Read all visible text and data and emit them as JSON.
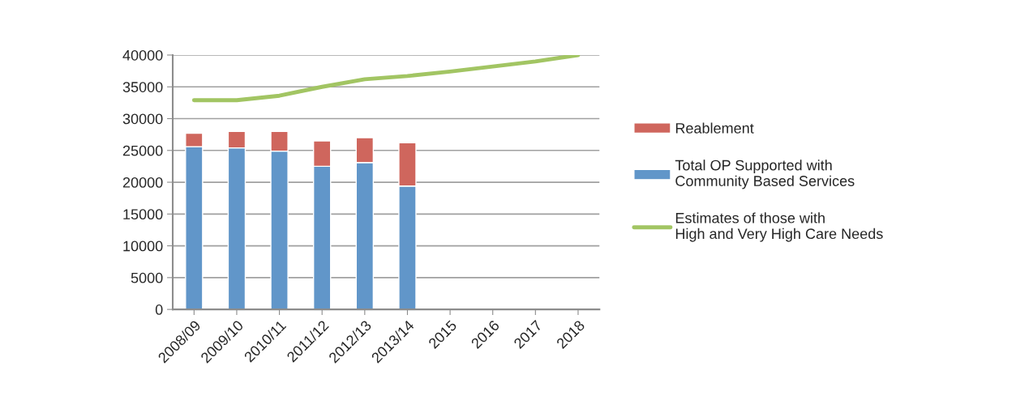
{
  "chart_data": {
    "type": "bar",
    "stacked": true,
    "categories": [
      "2008/09",
      "2009/10",
      "2010/11",
      "2011/12",
      "2012/13",
      "2013/14",
      "2015",
      "2016",
      "2017",
      "2018"
    ],
    "series": [
      {
        "name": "Total OP Supported with Community Based Services",
        "color": "#6196c9",
        "values": [
          25600,
          25400,
          24900,
          22500,
          23100,
          19400,
          null,
          null,
          null,
          null
        ]
      },
      {
        "name": "Reablement",
        "color": "#cf665d",
        "values": [
          2100,
          2600,
          3100,
          4000,
          3900,
          6800,
          null,
          null,
          null,
          null
        ]
      },
      {
        "name": "Estimates of those with High and Very High Care Needs",
        "type": "line",
        "color": "#a2c563",
        "values": [
          32900,
          32900,
          33600,
          35000,
          36200,
          36700,
          37400,
          38200,
          39000,
          40000
        ]
      }
    ],
    "ylim": [
      0,
      40000
    ],
    "yticks": [
      0,
      5000,
      10000,
      15000,
      20000,
      25000,
      30000,
      35000,
      40000
    ],
    "grid": "y",
    "legend": "right",
    "marker": "none",
    "line_style": "solid"
  }
}
